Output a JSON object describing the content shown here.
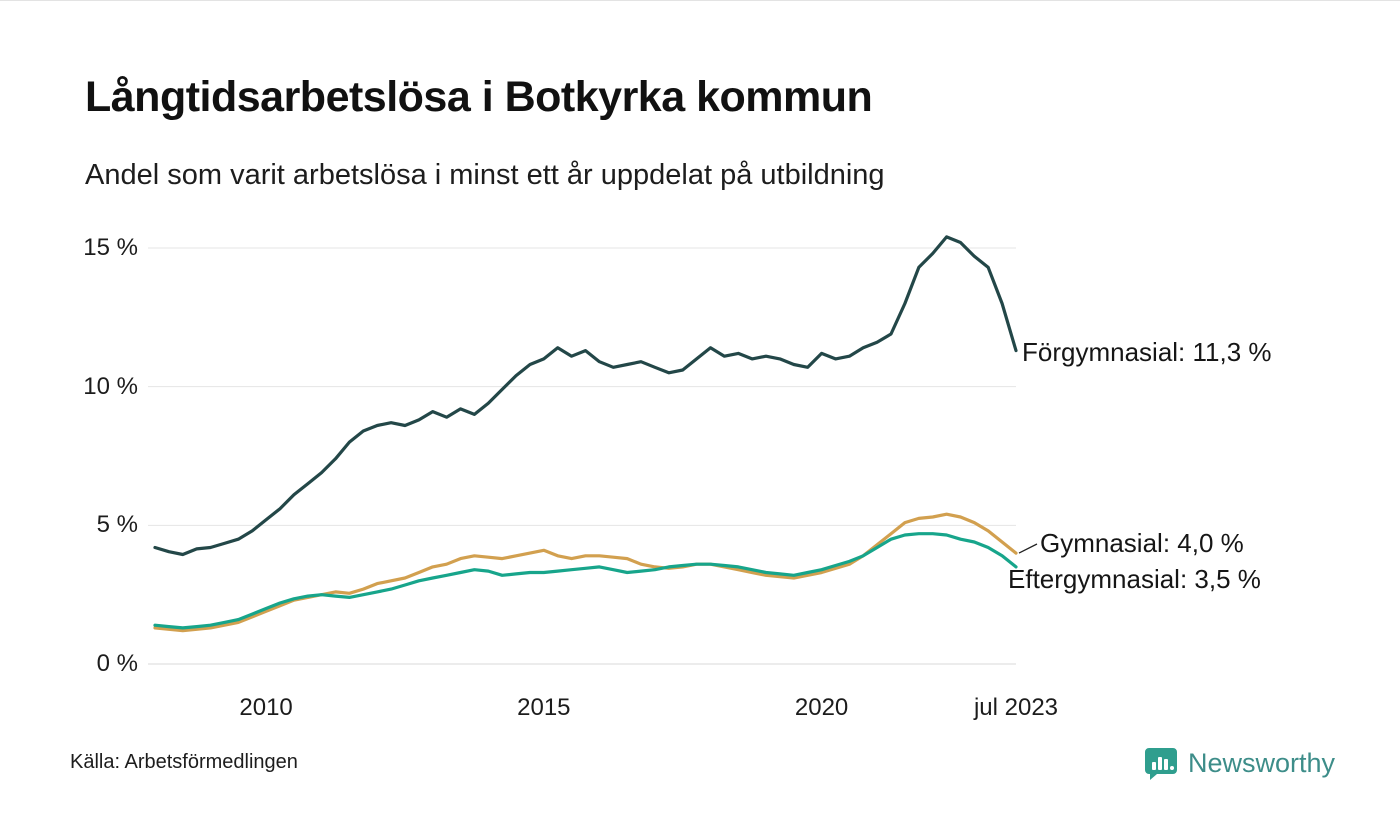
{
  "header": {
    "title": "Långtidsarbetslösa i Botkyrka kommun",
    "subtitle": "Andel som varit arbetslösa i minst ett år uppdelat på utbildning"
  },
  "chart_data": {
    "type": "line",
    "title": "Långtidsarbetslösa i Botkyrka kommun",
    "subtitle": "Andel som varit arbetslösa i minst ett år uppdelat på utbildning",
    "x_unit": "decimal_year",
    "xlim": [
      2008,
      2023.5
    ],
    "ylim": [
      0,
      15
    ],
    "grid": "horizontal",
    "legend_position": "right-end-labels",
    "yticks": [
      {
        "value": 0,
        "label": "0 %"
      },
      {
        "value": 5,
        "label": "5 %"
      },
      {
        "value": 10,
        "label": "10 %"
      },
      {
        "value": 15,
        "label": "15 %"
      }
    ],
    "xticks": [
      {
        "value": 2010,
        "label": "2010"
      },
      {
        "value": 2015,
        "label": "2015"
      },
      {
        "value": 2020,
        "label": "2020"
      },
      {
        "value": 2023.5,
        "label": "jul 2023"
      }
    ],
    "x": [
      2008,
      2008.25,
      2008.5,
      2008.75,
      2009,
      2009.25,
      2009.5,
      2009.75,
      2010,
      2010.25,
      2010.5,
      2010.75,
      2011,
      2011.25,
      2011.5,
      2011.75,
      2012,
      2012.25,
      2012.5,
      2012.75,
      2013,
      2013.25,
      2013.5,
      2013.75,
      2014,
      2014.25,
      2014.5,
      2014.75,
      2015,
      2015.25,
      2015.5,
      2015.75,
      2016,
      2016.25,
      2016.5,
      2016.75,
      2017,
      2017.25,
      2017.5,
      2017.75,
      2018,
      2018.25,
      2018.5,
      2018.75,
      2019,
      2019.25,
      2019.5,
      2019.75,
      2020,
      2020.25,
      2020.5,
      2020.75,
      2021,
      2021.25,
      2021.5,
      2021.75,
      2022,
      2022.25,
      2022.5,
      2022.75,
      2023,
      2023.25,
      2023.5
    ],
    "series": [
      {
        "name": "Förgymnasial",
        "color": "#234748",
        "end_value": "11,3 %",
        "end_label": "Förgymnasial: 11,3 %",
        "values": [
          4.2,
          4.05,
          3.95,
          4.15,
          4.2,
          4.35,
          4.5,
          4.8,
          5.2,
          5.6,
          6.1,
          6.5,
          6.9,
          7.4,
          8.0,
          8.4,
          8.6,
          8.7,
          8.6,
          8.8,
          9.1,
          8.9,
          9.2,
          9.0,
          9.4,
          9.9,
          10.4,
          10.8,
          11.0,
          11.4,
          11.1,
          11.3,
          10.9,
          10.7,
          10.8,
          10.9,
          10.7,
          10.5,
          10.6,
          11.0,
          11.4,
          11.1,
          11.2,
          11.0,
          11.1,
          11.0,
          10.8,
          10.7,
          11.2,
          11.0,
          11.1,
          11.4,
          11.6,
          11.9,
          13.0,
          14.3,
          14.8,
          15.4,
          15.2,
          14.7,
          14.3,
          13.0,
          11.3
        ]
      },
      {
        "name": "Gymnasial",
        "color": "#d2a04f",
        "end_value": "4,0 %",
        "end_label": "Gymnasial:  4,0 %",
        "values": [
          1.3,
          1.25,
          1.2,
          1.25,
          1.3,
          1.4,
          1.5,
          1.7,
          1.9,
          2.1,
          2.3,
          2.4,
          2.5,
          2.6,
          2.55,
          2.7,
          2.9,
          3.0,
          3.1,
          3.3,
          3.5,
          3.6,
          3.8,
          3.9,
          3.85,
          3.8,
          3.9,
          4.0,
          4.1,
          3.9,
          3.8,
          3.9,
          3.9,
          3.85,
          3.8,
          3.6,
          3.5,
          3.45,
          3.5,
          3.6,
          3.6,
          3.5,
          3.4,
          3.3,
          3.2,
          3.15,
          3.1,
          3.2,
          3.3,
          3.45,
          3.6,
          3.9,
          4.3,
          4.7,
          5.1,
          5.25,
          5.3,
          5.4,
          5.3,
          5.1,
          4.8,
          4.4,
          4.0
        ]
      },
      {
        "name": "Eftergymnasial",
        "color": "#17a58b",
        "end_value": "3,5 %",
        "end_label": "Eftergymnasial:  3,5 %",
        "values": [
          1.4,
          1.35,
          1.3,
          1.35,
          1.4,
          1.5,
          1.6,
          1.8,
          2.0,
          2.2,
          2.35,
          2.45,
          2.5,
          2.45,
          2.4,
          2.5,
          2.6,
          2.7,
          2.85,
          3.0,
          3.1,
          3.2,
          3.3,
          3.4,
          3.35,
          3.2,
          3.25,
          3.3,
          3.3,
          3.35,
          3.4,
          3.45,
          3.5,
          3.4,
          3.3,
          3.35,
          3.4,
          3.5,
          3.55,
          3.6,
          3.6,
          3.55,
          3.5,
          3.4,
          3.3,
          3.25,
          3.2,
          3.3,
          3.4,
          3.55,
          3.7,
          3.9,
          4.2,
          4.5,
          4.65,
          4.7,
          4.7,
          4.65,
          4.5,
          4.4,
          4.2,
          3.9,
          3.5
        ]
      }
    ]
  },
  "footer": {
    "source": "Källa: Arbetsförmedlingen",
    "brand": "Newsworthy"
  },
  "colors": {
    "grid": "#e4e4e4",
    "baseline": "#d9d9d9",
    "brand_teal": "#2f9e8e"
  }
}
